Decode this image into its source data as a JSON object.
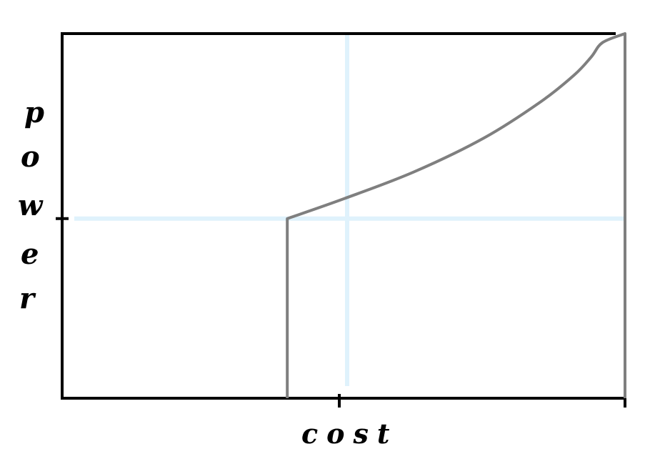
{
  "chart_data": {
    "type": "line",
    "xlabel": "cost",
    "ylabel": "power",
    "ylabel_letters": [
      "p",
      "o",
      "w",
      "e",
      "r"
    ],
    "series": [
      {
        "points": [
          {
            "x": 0.8,
            "y": 0.0
          },
          {
            "x": 0.8,
            "y": 1.0
          },
          {
            "x": 1.0,
            "y": 1.11
          },
          {
            "x": 1.25,
            "y": 1.26
          },
          {
            "x": 1.5,
            "y": 1.45
          },
          {
            "x": 1.7,
            "y": 1.65
          },
          {
            "x": 1.82,
            "y": 1.8
          },
          {
            "x": 1.88,
            "y": 1.9
          },
          {
            "x": 1.92,
            "y": 1.98
          },
          {
            "x": 2.0,
            "y": 2.03
          },
          {
            "x": 2.0,
            "y": 0.0
          }
        ]
      }
    ],
    "reference_lines": {
      "vertical_x": 1.0,
      "horizontal_y": 1.0
    },
    "xlim": [
      0,
      2
    ],
    "ylim": [
      0,
      2.03
    ],
    "x_ticks": [
      1,
      2
    ],
    "y_ticks": [
      1
    ],
    "grid": false,
    "colors": {
      "axis": "#000000",
      "curve": "#7f7f7f",
      "reference": "#dff2fc"
    }
  }
}
